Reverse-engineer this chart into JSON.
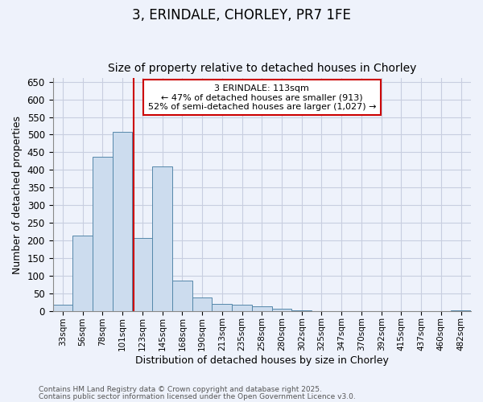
{
  "title": "3, ERINDALE, CHORLEY, PR7 1FE",
  "subtitle": "Size of property relative to detached houses in Chorley",
  "xlabel": "Distribution of detached houses by size in Chorley",
  "ylabel": "Number of detached properties",
  "categories": [
    "33sqm",
    "56sqm",
    "78sqm",
    "101sqm",
    "123sqm",
    "145sqm",
    "168sqm",
    "190sqm",
    "213sqm",
    "235sqm",
    "258sqm",
    "280sqm",
    "302sqm",
    "325sqm",
    "347sqm",
    "370sqm",
    "392sqm",
    "415sqm",
    "437sqm",
    "460sqm",
    "482sqm"
  ],
  "values": [
    18,
    213,
    437,
    507,
    207,
    410,
    87,
    38,
    20,
    17,
    14,
    6,
    1,
    0,
    0,
    0,
    0,
    0,
    0,
    0,
    2
  ],
  "bar_color": "#ccdcee",
  "bar_edgecolor": "#5588aa",
  "annotation_text": "3 ERINDALE: 113sqm\n← 47% of detached houses are smaller (913)\n52% of semi-detached houses are larger (1,027) →",
  "annotation_box_color": "#ffffff",
  "annotation_box_edgecolor": "#cc0000",
  "ylim": [
    0,
    660
  ],
  "yticks": [
    0,
    50,
    100,
    150,
    200,
    250,
    300,
    350,
    400,
    450,
    500,
    550,
    600,
    650
  ],
  "footer_line1": "Contains HM Land Registry data © Crown copyright and database right 2025.",
  "footer_line2": "Contains public sector information licensed under the Open Government Licence v3.0.",
  "background_color": "#eef2fb",
  "grid_color": "#c8cee0",
  "title_fontsize": 12,
  "subtitle_fontsize": 10
}
